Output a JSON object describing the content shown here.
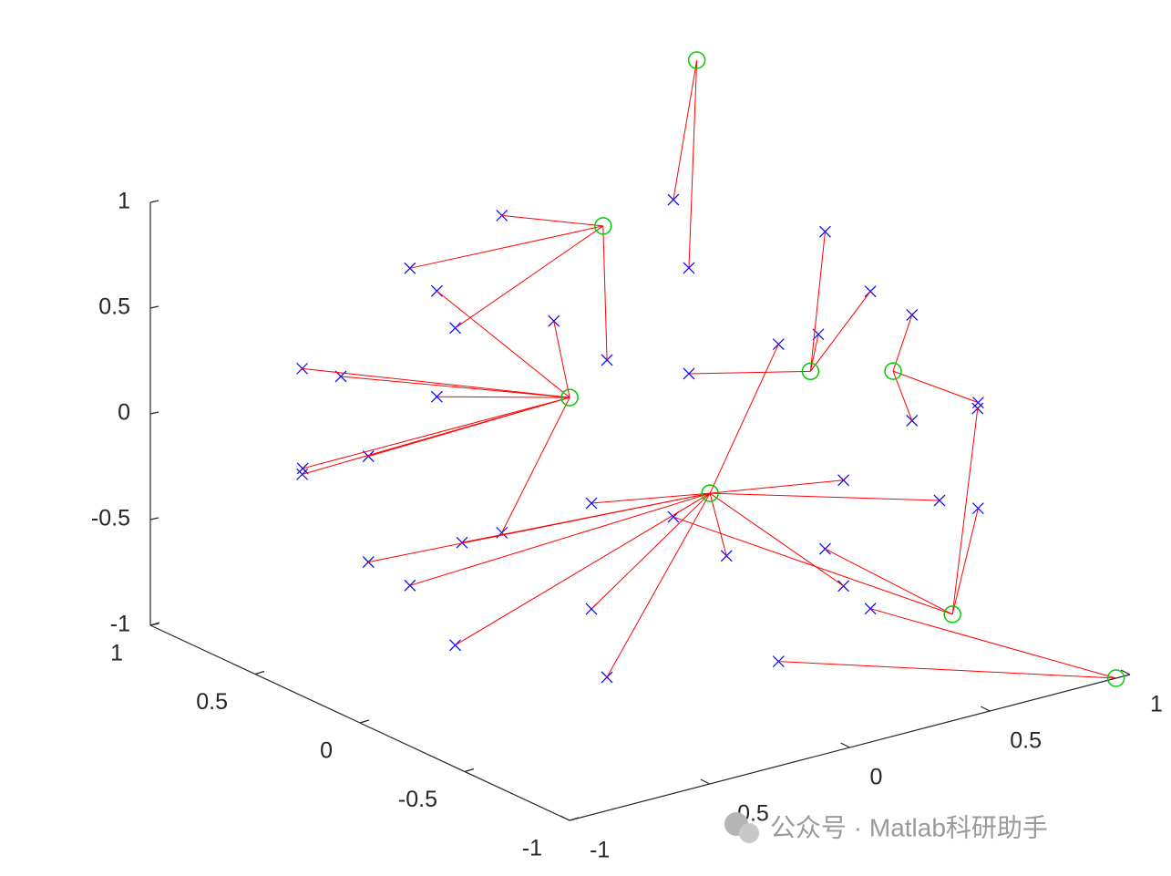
{
  "chart_data": {
    "type": "scatter3",
    "xlim": [
      -1,
      1
    ],
    "ylim": [
      -1,
      1
    ],
    "zlim": [
      -1,
      1
    ],
    "xticks": [
      -1,
      -0.5,
      0,
      0.5,
      1
    ],
    "yticks": [
      -1,
      -0.5,
      0,
      0.5,
      1
    ],
    "zticks": [
      -1,
      -0.5,
      0,
      0.5,
      1
    ],
    "line_color": "#ff0000",
    "series": [
      {
        "color": "#0000ff",
        "marker": "x",
        "x": [
          0.66,
          0.47,
          0,
          -0.47,
          -0.66,
          -0.47,
          0,
          0.47,
          0.97,
          0.69,
          0,
          -0.69,
          -0.97,
          -0.69,
          0,
          0.69,
          0.92,
          0.38,
          -0.38,
          -0.92,
          -0.92,
          -0.38,
          0.38,
          0.92,
          0.97,
          0.69,
          0,
          -0.69,
          -0.97,
          -0.69,
          0,
          0.69,
          0.66,
          0.47,
          0,
          -0.47,
          -0.66,
          -0.47,
          0,
          0.47
        ],
        "y": [
          0,
          0.47,
          0.66,
          0.47,
          0,
          -0.47,
          -0.66,
          -0.47,
          0,
          0.69,
          0.97,
          0.69,
          0,
          -0.69,
          -0.97,
          -0.69,
          0.38,
          0.92,
          0.92,
          0.38,
          -0.38,
          -0.92,
          -0.92,
          -0.38,
          0,
          0.69,
          0.97,
          0.69,
          0,
          -0.69,
          -0.97,
          -0.69,
          0,
          0.47,
          0.66,
          0.47,
          0,
          -0.47,
          -0.66,
          -0.47
        ],
        "z": [
          0.75,
          0.75,
          0.75,
          0.75,
          0.75,
          0.75,
          0.75,
          0.75,
          0.25,
          0.25,
          0.25,
          0.25,
          0.25,
          0.25,
          0.25,
          0.25,
          0,
          0,
          0,
          0,
          0,
          0,
          0,
          0,
          -0.25,
          -0.25,
          -0.25,
          -0.25,
          -0.25,
          -0.25,
          -0.25,
          -0.25,
          -0.75,
          -0.75,
          -0.75,
          -0.75,
          -0.75,
          -0.75,
          -0.75,
          -0.75
        ],
        "cluster": [
          4,
          0,
          1,
          1,
          1,
          1,
          3,
          4,
          5,
          0,
          2,
          2,
          2,
          3,
          3,
          5,
          4,
          2,
          2,
          2,
          3,
          3,
          3,
          6,
          5,
          4,
          2,
          2,
          3,
          3,
          3,
          6,
          6,
          6,
          2,
          3,
          3,
          3,
          7,
          7
        ]
      },
      {
        "color": "#00cc00",
        "marker": "o",
        "x": [
          0.95,
          -0.08,
          0.04,
          -0.11,
          0.72,
          0.91,
          0.89,
          0.95
        ],
        "y": [
          1,
          0.07,
          0.39,
          -0.48,
          0.15,
          0.01,
          -0.3,
          -1
        ],
        "z": [
          1,
          1,
          0,
          0,
          0,
          0,
          -1,
          -1
        ]
      }
    ]
  },
  "watermark": "公众号 · Matlab科研助手"
}
